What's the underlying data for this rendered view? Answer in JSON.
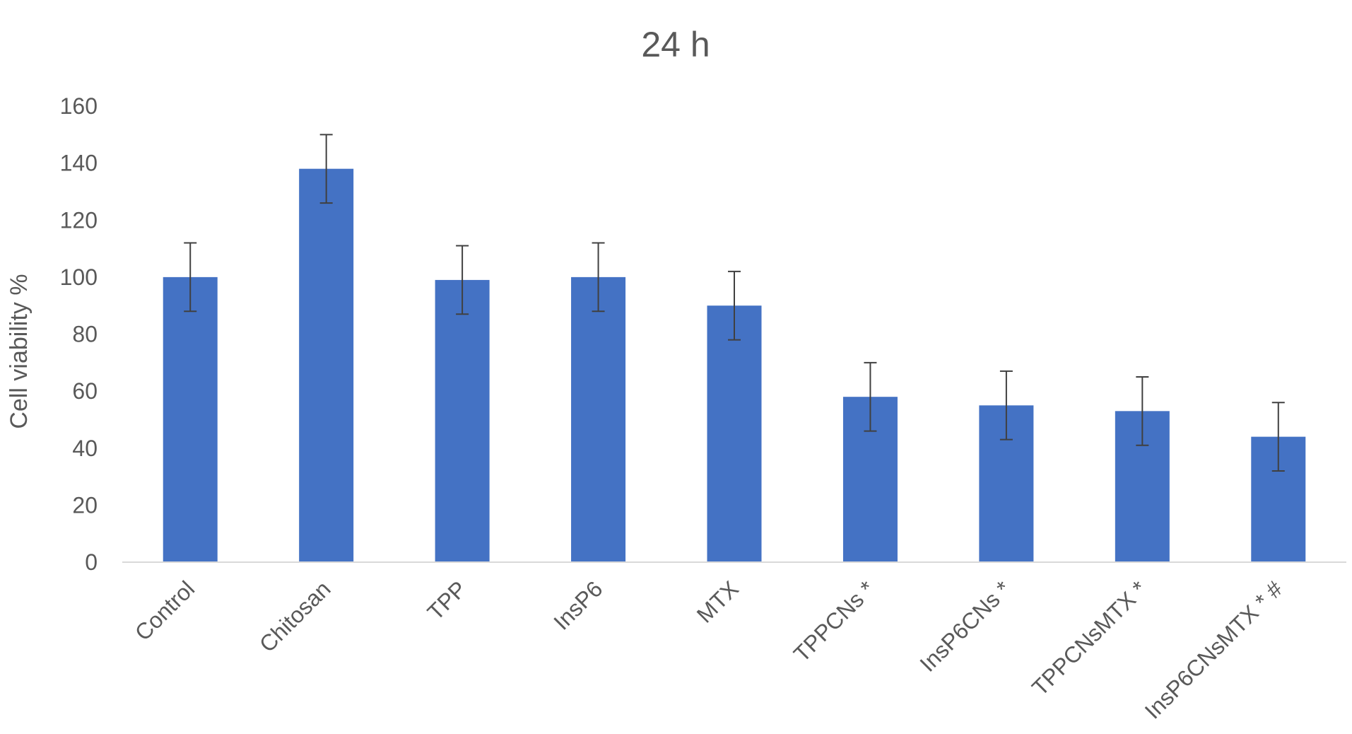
{
  "chart_data": {
    "type": "bar",
    "title": "24 h",
    "xlabel": "",
    "ylabel": "Cell viability %",
    "ylim": [
      0,
      160
    ],
    "yticks": [
      0,
      20,
      40,
      60,
      80,
      100,
      120,
      140,
      160
    ],
    "grid": false,
    "legend": "none",
    "bar_color": "#4472C4",
    "errorbar_color": "#404040",
    "categories": [
      "Control",
      "Chitosan",
      "TPP",
      "InsP6",
      "MTX",
      "TPPCNs *",
      "InsP6CNs *",
      "TPPCNsMTX *",
      "InsP6CNsMTX * #"
    ],
    "values": [
      100,
      138,
      99,
      100,
      90,
      58,
      55,
      53,
      44
    ],
    "errors": [
      12,
      12,
      12,
      12,
      12,
      12,
      12,
      12,
      12
    ]
  }
}
